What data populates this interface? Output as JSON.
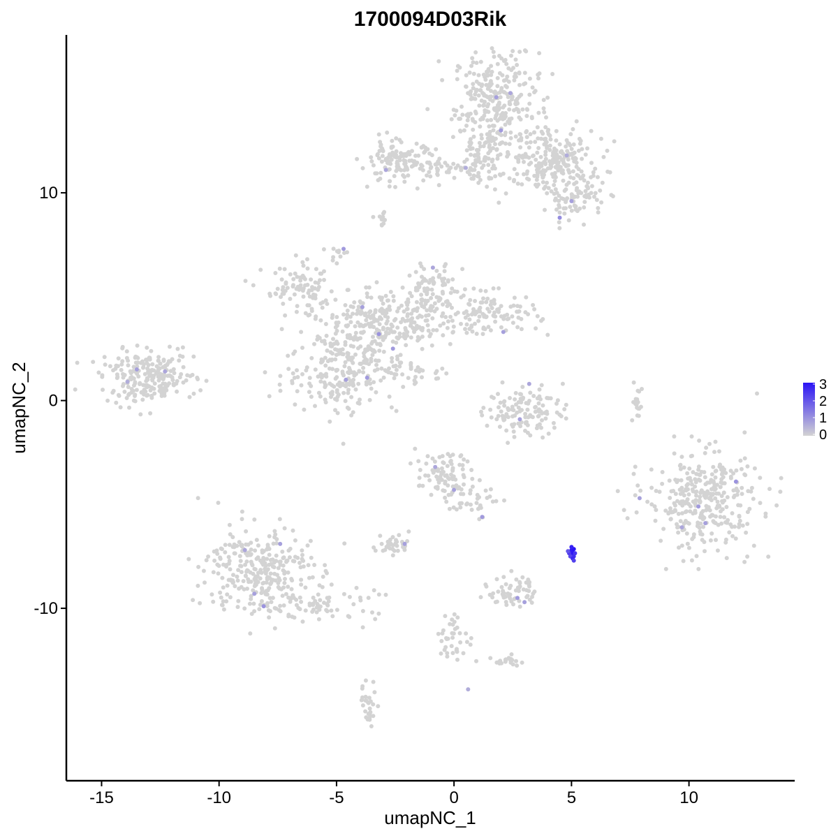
{
  "chart_data": {
    "type": "scatter",
    "title": "1700094D03Rik",
    "xlabel": "umapNC_1",
    "ylabel": "umapNC_2",
    "xlim": [
      -16.5,
      14.5
    ],
    "ylim": [
      -18.3,
      17.6
    ],
    "x_ticks": [
      -15,
      -10,
      -5,
      0,
      5,
      10
    ],
    "x_tick_labels": [
      "-15",
      "-10",
      "-5",
      "0",
      "5",
      "10"
    ],
    "y_ticks": [
      -10,
      0,
      10
    ],
    "y_tick_labels": [
      "-10",
      "0",
      "10"
    ],
    "grid": false,
    "legend": {
      "placement": "right",
      "type": "colorbar",
      "range": [
        0,
        3
      ],
      "ticks": [
        0,
        1,
        2,
        3
      ],
      "tick_labels": [
        "0",
        "1",
        "2",
        "3"
      ],
      "low_color": "#d3d3d3",
      "high_color": "#2b14f5"
    },
    "point_color_low": "#d3d3d3",
    "point_color_high": "#2b14f5",
    "clusters": [
      {
        "id": "c_top_a",
        "cx": 1.8,
        "cy": 14.2,
        "sx": 0.9,
        "sy": 1.3,
        "n": 320
      },
      {
        "id": "c_top_b",
        "cx": 4.2,
        "cy": 11.8,
        "sx": 0.9,
        "sy": 0.7,
        "n": 150
      },
      {
        "id": "c_top_c",
        "cx": 5.2,
        "cy": 9.8,
        "sx": 0.6,
        "sy": 0.5,
        "n": 80
      },
      {
        "id": "c_top_d",
        "cx": 3.5,
        "cy": 10.8,
        "sx": 1.6,
        "sy": 0.5,
        "n": 80
      },
      {
        "id": "c_top_e",
        "cx": -2.4,
        "cy": 11.5,
        "sx": 0.8,
        "sy": 0.5,
        "n": 120
      },
      {
        "id": "c_top_f",
        "cx": -0.3,
        "cy": 11.2,
        "sx": 1.0,
        "sy": 0.25,
        "n": 40
      },
      {
        "id": "c_top_g",
        "cx": 1.2,
        "cy": 11.6,
        "sx": 0.5,
        "sy": 0.5,
        "n": 40
      },
      {
        "id": "c_star_a",
        "cx": -4.8,
        "cy": 1.3,
        "sx": 1.2,
        "sy": 1.0,
        "n": 180
      },
      {
        "id": "c_star_b",
        "cx": -3.8,
        "cy": 2.6,
        "sx": 0.9,
        "sy": 0.8,
        "n": 120
      },
      {
        "id": "c_star_c",
        "cx": -3.2,
        "cy": 4.2,
        "sx": 1.2,
        "sy": 0.6,
        "n": 120
      },
      {
        "id": "c_star_d",
        "cx": -6.5,
        "cy": 5.3,
        "sx": 0.8,
        "sy": 0.6,
        "n": 90
      },
      {
        "id": "c_star_e",
        "cx": -0.8,
        "cy": 5.2,
        "sx": 0.6,
        "sy": 0.8,
        "n": 80
      },
      {
        "id": "c_star_f",
        "cx": 1.6,
        "cy": 4.2,
        "sx": 1.0,
        "sy": 0.5,
        "n": 100
      },
      {
        "id": "c_star_g",
        "cx": -1.5,
        "cy": 3.8,
        "sx": 1.0,
        "sy": 0.6,
        "n": 90
      },
      {
        "id": "c_star_h",
        "cx": -4.8,
        "cy": 7.0,
        "sx": 0.2,
        "sy": 0.25,
        "n": 10
      },
      {
        "id": "c_star_i",
        "cx": -1.8,
        "cy": 1.4,
        "sx": 0.8,
        "sy": 0.3,
        "n": 30
      },
      {
        "id": "c_left",
        "cx": -13.0,
        "cy": 1.1,
        "sx": 1.0,
        "sy": 0.6,
        "n": 230
      },
      {
        "id": "c_bl_a",
        "cx": -8.3,
        "cy": -8.2,
        "sx": 1.1,
        "sy": 1.1,
        "n": 300
      },
      {
        "id": "c_bl_b",
        "cx": -5.5,
        "cy": -9.8,
        "sx": 1.1,
        "sy": 0.4,
        "n": 60
      },
      {
        "id": "c_right",
        "cx": 10.6,
        "cy": -4.8,
        "sx": 1.2,
        "sy": 1.2,
        "n": 330
      },
      {
        "id": "c_mid_a",
        "cx": -0.4,
        "cy": -3.7,
        "sx": 0.6,
        "sy": 0.6,
        "n": 90
      },
      {
        "id": "c_mid_b",
        "cx": 0.9,
        "cy": -4.8,
        "sx": 0.5,
        "sy": 0.4,
        "n": 30
      },
      {
        "id": "c_ring",
        "cx": 3.0,
        "cy": -0.5,
        "sx": 0.8,
        "sy": 0.6,
        "n": 120
      },
      {
        "id": "c_small_a",
        "cx": -2.6,
        "cy": -6.9,
        "sx": 0.35,
        "sy": 0.25,
        "n": 35
      },
      {
        "id": "c_small_b",
        "cx": 2.5,
        "cy": -9.2,
        "sx": 0.5,
        "sy": 0.4,
        "n": 60
      },
      {
        "id": "c_small_c",
        "cx": 2.3,
        "cy": -12.5,
        "sx": 0.3,
        "sy": 0.15,
        "n": 20
      },
      {
        "id": "c_small_d",
        "cx": -3.6,
        "cy": -14.6,
        "sx": 0.2,
        "sy": 0.5,
        "n": 30
      },
      {
        "id": "c_small_e",
        "cx": 0.0,
        "cy": -11.5,
        "sx": 0.4,
        "sy": 0.6,
        "n": 40
      },
      {
        "id": "c_small_f",
        "cx": -3.0,
        "cy": 8.8,
        "sx": 0.15,
        "sy": 0.2,
        "n": 12
      },
      {
        "id": "c_small_g",
        "cx": 7.8,
        "cy": -0.1,
        "sx": 0.1,
        "sy": 0.5,
        "n": 20
      }
    ],
    "high_points": [
      {
        "x": 5.0,
        "y": -7.4,
        "value": 2.8
      },
      {
        "x": 5.05,
        "y": -7.3,
        "value": 3.0
      },
      {
        "x": 5.1,
        "y": -7.5,
        "value": 2.6
      },
      {
        "x": 5.0,
        "y": -7.2,
        "value": 2.9
      },
      {
        "x": 4.9,
        "y": -7.35,
        "value": 2.4
      },
      {
        "x": 5.1,
        "y": -7.15,
        "value": 3.0
      },
      {
        "x": 4.95,
        "y": -7.5,
        "value": 2.2
      },
      {
        "x": 5.05,
        "y": -7.6,
        "value": 2.7
      },
      {
        "x": 4.85,
        "y": -7.25,
        "value": 2.0
      },
      {
        "x": 5.15,
        "y": -7.35,
        "value": 2.5
      },
      {
        "x": 5.0,
        "y": -7.05,
        "value": 2.8
      },
      {
        "x": 5.1,
        "y": -7.7,
        "value": 2.3
      }
    ],
    "low_expr_points": [
      {
        "x": 1.8,
        "y": 14.6,
        "value": 0.8
      },
      {
        "x": 2.4,
        "y": 14.8,
        "value": 0.7
      },
      {
        "x": 2.0,
        "y": 13.0,
        "value": 0.9
      },
      {
        "x": 4.8,
        "y": 11.8,
        "value": 0.6
      },
      {
        "x": 5.0,
        "y": 9.6,
        "value": 0.8
      },
      {
        "x": 4.5,
        "y": 8.8,
        "value": 1.1
      },
      {
        "x": -2.9,
        "y": 11.1,
        "value": 0.7
      },
      {
        "x": 0.5,
        "y": 11.2,
        "value": 0.6
      },
      {
        "x": -4.7,
        "y": 7.3,
        "value": 0.9
      },
      {
        "x": -3.9,
        "y": 4.5,
        "value": 0.8
      },
      {
        "x": -3.2,
        "y": 3.2,
        "value": 1.0
      },
      {
        "x": -2.6,
        "y": 2.5,
        "value": 0.9
      },
      {
        "x": 2.1,
        "y": 3.3,
        "value": 0.8
      },
      {
        "x": -0.9,
        "y": 6.4,
        "value": 0.7
      },
      {
        "x": -13.5,
        "y": 1.5,
        "value": 0.8
      },
      {
        "x": -12.3,
        "y": 1.4,
        "value": 0.7
      },
      {
        "x": -13.9,
        "y": 0.9,
        "value": 0.6
      },
      {
        "x": -8.5,
        "y": -9.3,
        "value": 0.8
      },
      {
        "x": -8.1,
        "y": -9.9,
        "value": 1.0
      },
      {
        "x": -8.9,
        "y": -7.2,
        "value": 0.7
      },
      {
        "x": -7.4,
        "y": -6.9,
        "value": 0.8
      },
      {
        "x": 10.4,
        "y": -5.1,
        "value": 0.9
      },
      {
        "x": 10.7,
        "y": -5.9,
        "value": 0.8
      },
      {
        "x": 12.0,
        "y": -3.9,
        "value": 1.0
      },
      {
        "x": 9.7,
        "y": -6.1,
        "value": 0.7
      },
      {
        "x": 7.9,
        "y": -4.7,
        "value": 0.8
      },
      {
        "x": -0.8,
        "y": -3.2,
        "value": 0.7
      },
      {
        "x": -0.0,
        "y": -4.3,
        "value": 0.8
      },
      {
        "x": 1.2,
        "y": -5.6,
        "value": 0.9
      },
      {
        "x": 2.8,
        "y": -0.9,
        "value": 0.8
      },
      {
        "x": 3.2,
        "y": 0.8,
        "value": 0.7
      },
      {
        "x": 2.7,
        "y": -9.5,
        "value": 0.9
      },
      {
        "x": 3.0,
        "y": -9.7,
        "value": 0.8
      },
      {
        "x": 0.6,
        "y": -13.9,
        "value": 0.6
      },
      {
        "x": -2.1,
        "y": -6.9,
        "value": 0.8
      },
      {
        "x": -4.6,
        "y": 1.0,
        "value": 0.8
      },
      {
        "x": -3.7,
        "y": 1.1,
        "value": 0.9
      }
    ]
  }
}
